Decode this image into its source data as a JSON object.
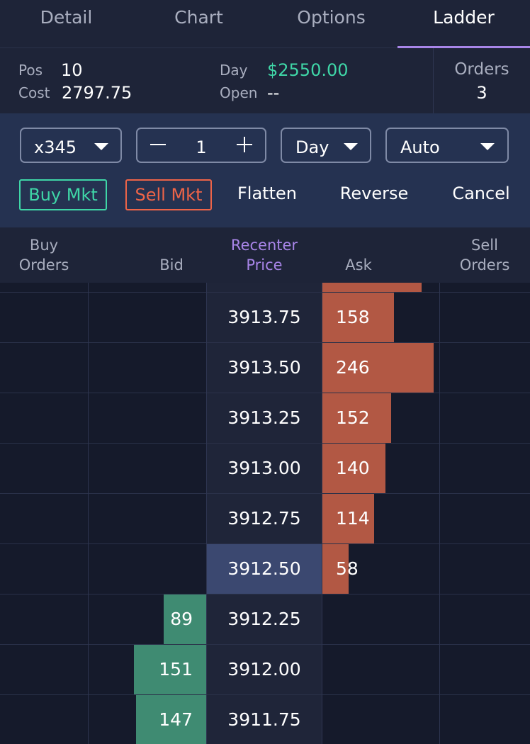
{
  "tabs": [
    {
      "label": "Detail",
      "active": false
    },
    {
      "label": "Chart",
      "active": false
    },
    {
      "label": "Options",
      "active": false
    },
    {
      "label": "Ladder",
      "active": true
    }
  ],
  "position": {
    "pos_label": "Pos",
    "pos_value": "10",
    "cost_label": "Cost",
    "cost_value": "2797.75",
    "day_label": "Day",
    "day_value": "$2550.00",
    "open_label": "Open",
    "open_value": "--",
    "orders_label": "Orders",
    "orders_value": "3"
  },
  "controls": {
    "account": "x345",
    "quantity": "1",
    "duration": "Day",
    "order_type": "Auto",
    "buy_market": "Buy Mkt",
    "sell_market": "Sell Mkt",
    "flatten": "Flatten",
    "reverse": "Reverse",
    "cancel": "Cancel"
  },
  "ladder_header": {
    "buy_orders_1": "Buy",
    "buy_orders_2": "Orders",
    "bid": "Bid",
    "recenter_1": "Recenter",
    "recenter_2": "Price",
    "ask": "Ask",
    "sell_orders_1": "Sell",
    "sell_orders_2": "Orders"
  },
  "ladder": [
    {
      "price": "3913.75",
      "bid": "",
      "ask": "158",
      "ask_size": 158,
      "bid_size": 0,
      "current": false
    },
    {
      "price": "3913.50",
      "bid": "",
      "ask": "246",
      "ask_size": 246,
      "bid_size": 0,
      "current": false
    },
    {
      "price": "3913.25",
      "bid": "",
      "ask": "152",
      "ask_size": 152,
      "bid_size": 0,
      "current": false
    },
    {
      "price": "3913.00",
      "bid": "",
      "ask": "140",
      "ask_size": 140,
      "bid_size": 0,
      "current": false
    },
    {
      "price": "3912.75",
      "bid": "",
      "ask": "114",
      "ask_size": 114,
      "bid_size": 0,
      "current": false
    },
    {
      "price": "3912.50",
      "bid": "",
      "ask": "58",
      "ask_size": 58,
      "bid_size": 0,
      "current": true
    },
    {
      "price": "3912.25",
      "bid": "89",
      "ask": "",
      "ask_size": 0,
      "bid_size": 89,
      "current": false
    },
    {
      "price": "3912.00",
      "bid": "151",
      "ask": "",
      "ask_size": 0,
      "bid_size": 151,
      "current": false
    },
    {
      "price": "3911.75",
      "bid": "147",
      "ask": "",
      "ask_size": 0,
      "bid_size": 147,
      "current": false
    }
  ],
  "colors": {
    "accent": "#a885e8",
    "buy": "#3fd6a7",
    "sell": "#ee6448",
    "ask_bar": "#b25844",
    "bid_bar": "#3f8b72"
  }
}
